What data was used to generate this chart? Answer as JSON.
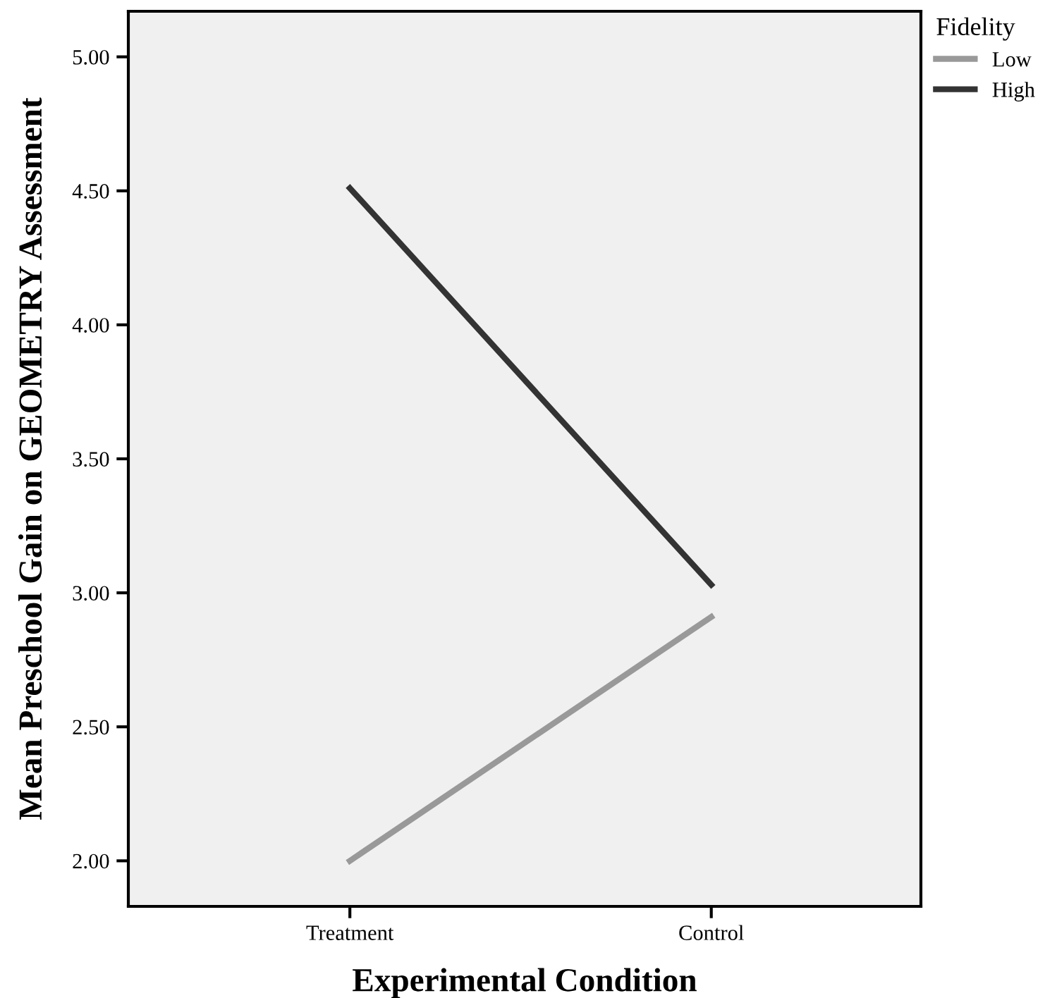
{
  "chart_data": {
    "type": "line",
    "xlabel": "Experimental Condition",
    "ylabel": "Mean Preschool Gain on GEOMETRY Assessment",
    "legend_title": "Fidelity",
    "categories": [
      "Treatment",
      "Control"
    ],
    "series": [
      {
        "name": "Low",
        "color": "#999999",
        "values": [
          2.0,
          2.91
        ]
      },
      {
        "name": "High",
        "color": "#333333",
        "values": [
          4.51,
          3.03
        ]
      }
    ],
    "ylim": [
      1.83,
      5.17
    ],
    "yticks": [
      {
        "value": 2.0,
        "label": "2.00"
      },
      {
        "value": 2.5,
        "label": "2.50"
      },
      {
        "value": 3.0,
        "label": "3.00"
      },
      {
        "value": 3.5,
        "label": "3.50"
      },
      {
        "value": 4.0,
        "label": "4.00"
      },
      {
        "value": 4.5,
        "label": "4.50"
      },
      {
        "value": 5.0,
        "label": "5.00"
      }
    ],
    "grid": false,
    "legend": "top right",
    "marker": "none",
    "line_style": "solid"
  }
}
